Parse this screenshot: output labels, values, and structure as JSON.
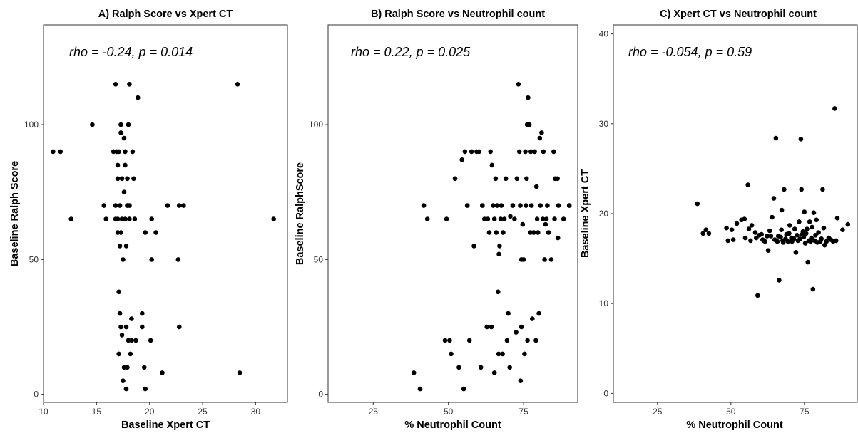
{
  "chart_data": [
    {
      "type": "scatter",
      "title": "A) Ralph Score vs Xpert CT",
      "xlabel": "Baseline Xpert CT",
      "ylabel": "Baseline Ralph Score",
      "xlim": [
        10,
        33
      ],
      "ylim": [
        -3,
        137
      ],
      "xticks": [
        10,
        15,
        20,
        25,
        30
      ],
      "yticks": [
        0,
        50,
        100
      ],
      "grid": false,
      "annotation": "rho = -0.24, p = 0.014",
      "points": [
        [
          10.9,
          90
        ],
        [
          11.6,
          90
        ],
        [
          12.6,
          65
        ],
        [
          14.6,
          100
        ],
        [
          15.7,
          70
        ],
        [
          15.9,
          65
        ],
        [
          16.6,
          90
        ],
        [
          16.8,
          115
        ],
        [
          16.8,
          65
        ],
        [
          16.8,
          70
        ],
        [
          16.9,
          90
        ],
        [
          17.0,
          60
        ],
        [
          17.0,
          80
        ],
        [
          17.0,
          85
        ],
        [
          17.0,
          65
        ],
        [
          17.1,
          38
        ],
        [
          17.1,
          15
        ],
        [
          17.1,
          90
        ],
        [
          17.2,
          55
        ],
        [
          17.2,
          30
        ],
        [
          17.2,
          70
        ],
        [
          17.3,
          25
        ],
        [
          17.3,
          60
        ],
        [
          17.3,
          100
        ],
        [
          17.3,
          97
        ],
        [
          17.4,
          22
        ],
        [
          17.4,
          80
        ],
        [
          17.4,
          65
        ],
        [
          17.5,
          50
        ],
        [
          17.5,
          5
        ],
        [
          17.6,
          75
        ],
        [
          17.6,
          10
        ],
        [
          17.6,
          95
        ],
        [
          17.7,
          90
        ],
        [
          17.7,
          65
        ],
        [
          17.7,
          85
        ],
        [
          17.8,
          2
        ],
        [
          17.8,
          25
        ],
        [
          17.8,
          55
        ],
        [
          17.9,
          70
        ],
        [
          17.9,
          10
        ],
        [
          17.9,
          80
        ],
        [
          18.0,
          100
        ],
        [
          18.0,
          20
        ],
        [
          18.1,
          115
        ],
        [
          18.1,
          65
        ],
        [
          18.1,
          70
        ],
        [
          18.2,
          15
        ],
        [
          18.3,
          28
        ],
        [
          18.3,
          20
        ],
        [
          18.4,
          90
        ],
        [
          18.5,
          80
        ],
        [
          18.6,
          65
        ],
        [
          18.7,
          20
        ],
        [
          18.9,
          110
        ],
        [
          19.3,
          30
        ],
        [
          19.3,
          25
        ],
        [
          19.5,
          10
        ],
        [
          19.6,
          2
        ],
        [
          19.6,
          60
        ],
        [
          20.1,
          20
        ],
        [
          20.2,
          50
        ],
        [
          20.2,
          65
        ],
        [
          20.6,
          60
        ],
        [
          21.2,
          8
        ],
        [
          21.7,
          70
        ],
        [
          22.7,
          50
        ],
        [
          22.8,
          25
        ],
        [
          22.8,
          70
        ],
        [
          23.2,
          70
        ],
        [
          28.3,
          115
        ],
        [
          28.5,
          8
        ],
        [
          31.7,
          65
        ]
      ]
    },
    {
      "type": "scatter",
      "title": "B) Ralph Score vs Neutrophil count",
      "xlabel": "% Neutrophil Count",
      "ylabel": "Baseline RalphScore",
      "xlim": [
        10,
        93
      ],
      "ylim": [
        -3,
        137
      ],
      "xticks": [
        25,
        50,
        75
      ],
      "yticks": [
        0,
        50,
        100
      ],
      "grid": false,
      "annotation": "rho = 0.22, p = 0.025",
      "points": [
        [
          38.5,
          8
        ],
        [
          40.6,
          2
        ],
        [
          41.8,
          70
        ],
        [
          43.0,
          65
        ],
        [
          48.9,
          20
        ],
        [
          49.4,
          65
        ],
        [
          50.4,
          20
        ],
        [
          50.9,
          15
        ],
        [
          52.2,
          80
        ],
        [
          53.5,
          10
        ],
        [
          54.5,
          87
        ],
        [
          55.1,
          2
        ],
        [
          55.5,
          90
        ],
        [
          56.3,
          70
        ],
        [
          57.0,
          20
        ],
        [
          57.7,
          90
        ],
        [
          58.5,
          55
        ],
        [
          59.4,
          90
        ],
        [
          60.2,
          90
        ],
        [
          60.8,
          10
        ],
        [
          61.3,
          70
        ],
        [
          62.0,
          65
        ],
        [
          62.8,
          25
        ],
        [
          63.1,
          65
        ],
        [
          63.6,
          60
        ],
        [
          64.0,
          90
        ],
        [
          64.3,
          25
        ],
        [
          64.5,
          85
        ],
        [
          64.9,
          70
        ],
        [
          65.3,
          65
        ],
        [
          65.3,
          8
        ],
        [
          65.7,
          80
        ],
        [
          65.9,
          60
        ],
        [
          66.2,
          70
        ],
        [
          66.5,
          38
        ],
        [
          66.7,
          15
        ],
        [
          66.8,
          52
        ],
        [
          67.0,
          55
        ],
        [
          67.4,
          65
        ],
        [
          67.6,
          70
        ],
        [
          68.0,
          15
        ],
        [
          68.2,
          60
        ],
        [
          68.6,
          65
        ],
        [
          69.1,
          80
        ],
        [
          69.5,
          20
        ],
        [
          69.9,
          30
        ],
        [
          70.4,
          10
        ],
        [
          70.6,
          66
        ],
        [
          71.4,
          70
        ],
        [
          72.0,
          65
        ],
        [
          72.5,
          23
        ],
        [
          72.8,
          80
        ],
        [
          73.3,
          115
        ],
        [
          73.6,
          90
        ],
        [
          73.9,
          70
        ],
        [
          74.0,
          5
        ],
        [
          74.3,
          25
        ],
        [
          74.3,
          50
        ],
        [
          74.7,
          63
        ],
        [
          75.0,
          50
        ],
        [
          75.3,
          15
        ],
        [
          75.6,
          90
        ],
        [
          75.8,
          70
        ],
        [
          76.0,
          80
        ],
        [
          76.2,
          100
        ],
        [
          76.3,
          20
        ],
        [
          76.5,
          110
        ],
        [
          76.9,
          100
        ],
        [
          77.3,
          60
        ],
        [
          77.4,
          90
        ],
        [
          77.6,
          70
        ],
        [
          77.9,
          28
        ],
        [
          78.4,
          60
        ],
        [
          78.7,
          90
        ],
        [
          79.1,
          20
        ],
        [
          79.3,
          77
        ],
        [
          79.5,
          65
        ],
        [
          79.8,
          60
        ],
        [
          80.1,
          30
        ],
        [
          80.4,
          95
        ],
        [
          80.6,
          70
        ],
        [
          81.0,
          97
        ],
        [
          81.4,
          65
        ],
        [
          81.6,
          90
        ],
        [
          82.0,
          50
        ],
        [
          82.3,
          63
        ],
        [
          82.6,
          65
        ],
        [
          82.9,
          70
        ],
        [
          83.3,
          60
        ],
        [
          84.2,
          50
        ],
        [
          85.0,
          90
        ],
        [
          85.3,
          65
        ],
        [
          85.5,
          80
        ],
        [
          86.3,
          80
        ],
        [
          86.4,
          58
        ],
        [
          86.6,
          70
        ],
        [
          88.3,
          65
        ],
        [
          90.2,
          70
        ]
      ]
    },
    {
      "type": "scatter",
      "title": "C) Xpert CT vs Neutrophil count",
      "xlabel": "% Neutrophil Count",
      "ylabel": "Baseline Xpert CT",
      "xlim": [
        10,
        93
      ],
      "ylim": [
        -1,
        41
      ],
      "xticks": [
        25,
        50,
        75
      ],
      "yticks": [
        0,
        10,
        20,
        30,
        40
      ],
      "grid": false,
      "annotation": "rho = -0.054, p = 0.59",
      "points": [
        [
          38.6,
          21.1
        ],
        [
          40.5,
          17.8
        ],
        [
          41.5,
          18.2
        ],
        [
          42.5,
          17.8
        ],
        [
          48.5,
          18.4
        ],
        [
          49.0,
          17.0
        ],
        [
          50.3,
          18.2
        ],
        [
          50.8,
          17.1
        ],
        [
          52.0,
          18.9
        ],
        [
          53.6,
          19.3
        ],
        [
          54.6,
          19.4
        ],
        [
          54.9,
          17.3
        ],
        [
          55.8,
          23.2
        ],
        [
          56.1,
          18.3
        ],
        [
          56.7,
          17.0
        ],
        [
          57.1,
          18.7
        ],
        [
          58.3,
          17.9
        ],
        [
          58.6,
          17.3
        ],
        [
          59.1,
          10.9
        ],
        [
          59.6,
          17.6
        ],
        [
          60.4,
          17.7
        ],
        [
          60.8,
          17.1
        ],
        [
          61.1,
          17.0
        ],
        [
          61.6,
          16.9
        ],
        [
          62.3,
          17.5
        ],
        [
          62.7,
          15.9
        ],
        [
          63.2,
          18.1
        ],
        [
          63.6,
          17.5
        ],
        [
          64.0,
          19.6
        ],
        [
          64.6,
          21.7
        ],
        [
          64.9,
          17.1
        ],
        [
          65.3,
          28.4
        ],
        [
          65.8,
          16.9
        ],
        [
          66.1,
          17.5
        ],
        [
          66.4,
          12.6
        ],
        [
          66.9,
          17.4
        ],
        [
          67.2,
          18.2
        ],
        [
          67.3,
          20.4
        ],
        [
          67.6,
          17.0
        ],
        [
          67.8,
          16.8
        ],
        [
          68.1,
          22.7
        ],
        [
          68.6,
          17.2
        ],
        [
          68.9,
          17.7
        ],
        [
          69.4,
          16.9
        ],
        [
          69.8,
          17.8
        ],
        [
          70.0,
          18.7
        ],
        [
          70.6,
          17.3
        ],
        [
          70.8,
          16.9
        ],
        [
          71.4,
          17.2
        ],
        [
          71.7,
          18.3
        ],
        [
          72.1,
          15.7
        ],
        [
          72.5,
          17.6
        ],
        [
          72.8,
          17.0
        ],
        [
          73.2,
          19.1
        ],
        [
          73.5,
          17.2
        ],
        [
          73.8,
          28.3
        ],
        [
          74.0,
          22.7
        ],
        [
          74.3,
          17.7
        ],
        [
          74.5,
          18.0
        ],
        [
          74.8,
          17.4
        ],
        [
          75.0,
          20.2
        ],
        [
          75.3,
          16.7
        ],
        [
          75.6,
          17.8
        ],
        [
          75.9,
          18.3
        ],
        [
          76.2,
          14.6
        ],
        [
          76.5,
          17.0
        ],
        [
          76.8,
          19.1
        ],
        [
          77.1,
          16.9
        ],
        [
          77.4,
          17.3
        ],
        [
          77.6,
          18.5
        ],
        [
          77.9,
          11.6
        ],
        [
          78.2,
          20.1
        ],
        [
          78.5,
          17.0
        ],
        [
          78.8,
          17.6
        ],
        [
          79.1,
          19.3
        ],
        [
          79.4,
          16.8
        ],
        [
          79.8,
          17.9
        ],
        [
          80.4,
          16.9
        ],
        [
          80.8,
          17.2
        ],
        [
          81.2,
          22.7
        ],
        [
          81.6,
          18.4
        ],
        [
          81.9,
          16.5
        ],
        [
          82.5,
          16.9
        ],
        [
          83.3,
          17.3
        ],
        [
          84.0,
          17.1
        ],
        [
          84.8,
          16.9
        ],
        [
          85.3,
          31.7
        ],
        [
          85.8,
          17.0
        ],
        [
          86.2,
          19.5
        ],
        [
          88.0,
          18.2
        ],
        [
          89.8,
          18.8
        ]
      ]
    }
  ]
}
